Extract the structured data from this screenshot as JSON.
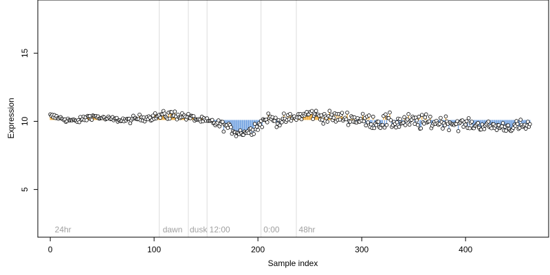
{
  "chart_data": {
    "type": "scatter",
    "xlabel": "Sample index",
    "ylabel": "Expression",
    "xlim": [
      -12,
      480
    ],
    "ylim": [
      1.5,
      18.9
    ],
    "x_ticks": [
      0,
      100,
      200,
      300,
      400
    ],
    "y_ticks": [
      5,
      10,
      15
    ],
    "baseline": 10.1,
    "colors": {
      "above": "#f0a830",
      "below": "#6fa0e0",
      "point_stroke": "#000000",
      "point_fill": "#ffffff",
      "guide": "#dcdcdc",
      "annotation_text": "#a0a0a0",
      "axis": "#000000"
    },
    "vertical_guides": [
      105,
      133,
      151,
      203,
      237
    ],
    "annotations": [
      {
        "x": 3,
        "text": "24hr"
      },
      {
        "x": 107,
        "text": "dawn"
      },
      {
        "x": 133,
        "text": "dusk"
      },
      {
        "x": 152,
        "text": "12:00"
      },
      {
        "x": 204,
        "text": "0:00"
      },
      {
        "x": 238,
        "text": "48hr"
      }
    ],
    "segments": [
      [
        0,
        10.45,
        10.3,
        0.1
      ],
      [
        12,
        10.2,
        10.1,
        0.15
      ],
      [
        25,
        10.0,
        10.0,
        0.15
      ],
      [
        40,
        10.45,
        10.2,
        0.2
      ],
      [
        55,
        10.2,
        10.1,
        0.15
      ],
      [
        75,
        10.1,
        10.0,
        0.15
      ],
      [
        90,
        10.3,
        10.2,
        0.2
      ],
      [
        105,
        10.4,
        10.3,
        0.25
      ],
      [
        115,
        10.5,
        10.4,
        0.3
      ],
      [
        125,
        10.45,
        10.4,
        0.25
      ],
      [
        135,
        10.3,
        10.2,
        0.2
      ],
      [
        150,
        10.0,
        10.0,
        0.2
      ],
      [
        160,
        9.9,
        9.8,
        0.25
      ],
      [
        170,
        9.65,
        9.5,
        0.25
      ],
      [
        180,
        9.2,
        9.1,
        0.25
      ],
      [
        190,
        9.2,
        9.3,
        0.25
      ],
      [
        201,
        9.6,
        10.2,
        0.25
      ],
      [
        210,
        10.3,
        10.2,
        0.25
      ],
      [
        220,
        10.0,
        10.0,
        0.3
      ],
      [
        235,
        10.2,
        10.4,
        0.3
      ],
      [
        250,
        10.6,
        10.5,
        0.3
      ],
      [
        265,
        10.3,
        10.3,
        0.35
      ],
      [
        285,
        10.3,
        10.2,
        0.35
      ],
      [
        300,
        10.1,
        10.0,
        0.4
      ],
      [
        320,
        9.9,
        10.0,
        0.45
      ],
      [
        340,
        10.0,
        9.9,
        0.45
      ],
      [
        360,
        9.9,
        10.0,
        0.45
      ],
      [
        380,
        10.0,
        9.8,
        0.4
      ],
      [
        400,
        9.8,
        9.7,
        0.3
      ],
      [
        420,
        9.65,
        9.65,
        0.3
      ],
      [
        440,
        9.6,
        9.6,
        0.3
      ],
      [
        450,
        9.55,
        9.7,
        0.35
      ],
      [
        462,
        9.7,
        9.7,
        0.35
      ]
    ]
  }
}
